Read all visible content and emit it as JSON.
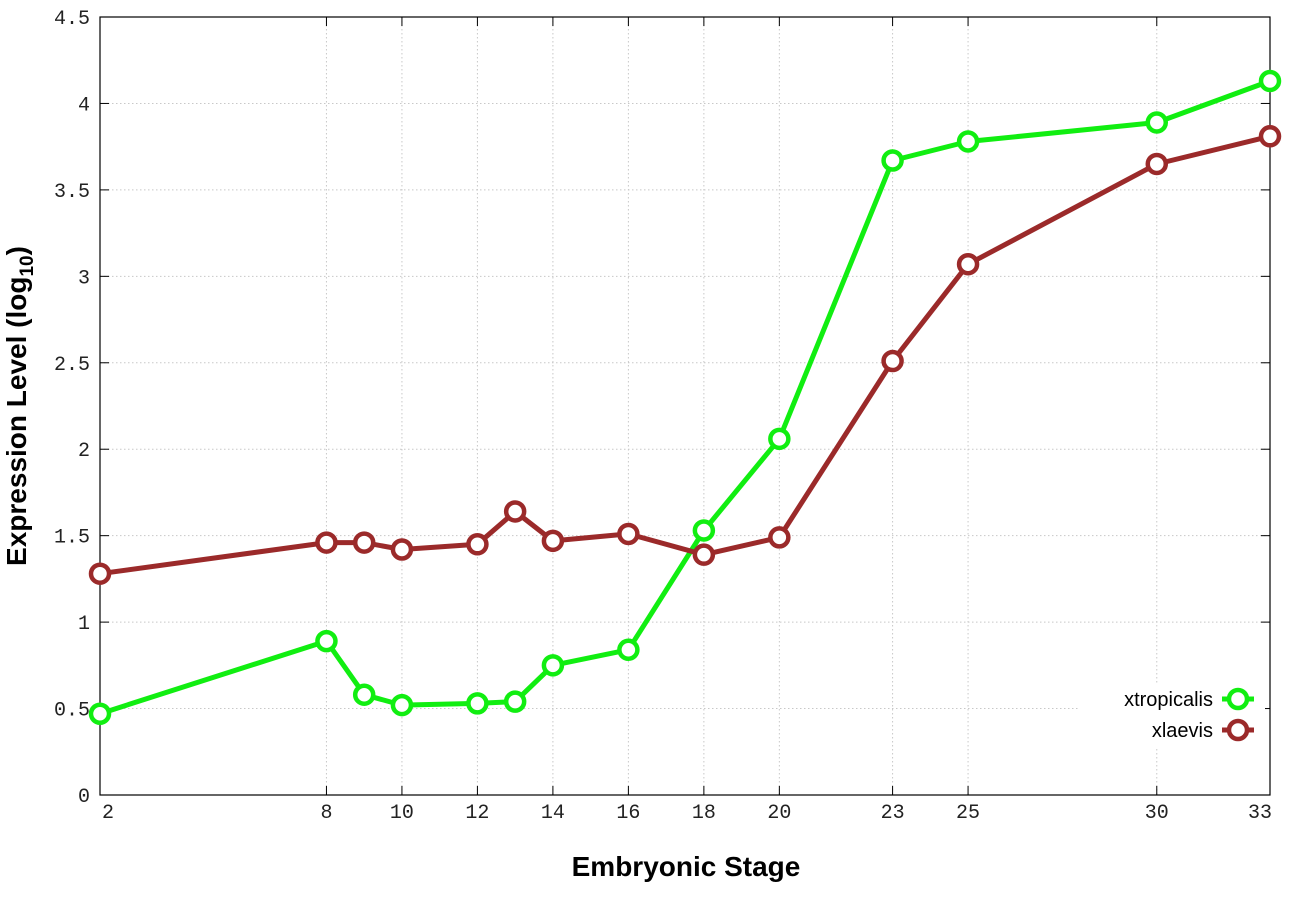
{
  "chart_data": {
    "type": "line",
    "xlabel": "Embryonic Stage",
    "ylabel_main": "Expression Level (log",
    "ylabel_sub": "10",
    "ylabel_close": ")",
    "xlim": [
      2,
      33
    ],
    "ylim": [
      0,
      4.5
    ],
    "x_ticks": [
      2,
      8,
      10,
      12,
      14,
      16,
      18,
      20,
      23,
      25,
      30,
      33
    ],
    "y_ticks": [
      0,
      0.5,
      1,
      1.5,
      2,
      2.5,
      3,
      3.5,
      4,
      4.5
    ],
    "y_tick_labels": [
      "0",
      "0.5",
      "1",
      "1.5",
      "2",
      "2.5",
      "3",
      "3.5",
      "4",
      "4.5"
    ],
    "grid": true,
    "legend_position": "bottom-right",
    "x": [
      2,
      8,
      9,
      10,
      12,
      13,
      14,
      16,
      18,
      20,
      23,
      25,
      30,
      33
    ],
    "series": [
      {
        "name": "xtropicalis",
        "color": "#11ee11",
        "values": [
          0.47,
          0.89,
          0.58,
          0.52,
          0.53,
          0.54,
          0.75,
          0.84,
          1.53,
          2.06,
          3.67,
          3.78,
          3.89,
          4.13
        ]
      },
      {
        "name": "xlaevis",
        "color": "#9b2a2a",
        "values": [
          1.28,
          1.46,
          1.46,
          1.42,
          1.45,
          1.64,
          1.47,
          1.51,
          1.39,
          1.49,
          2.51,
          3.07,
          3.65,
          3.81
        ]
      }
    ]
  }
}
